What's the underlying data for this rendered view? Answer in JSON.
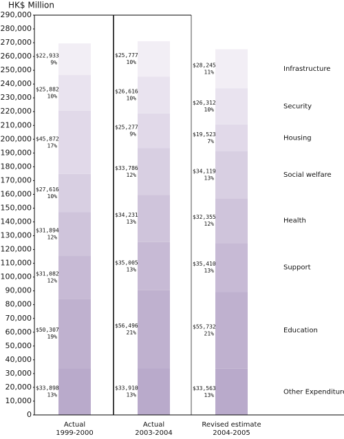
{
  "chart_data": {
    "type": "stacked_bar",
    "y_label": "HK$ Million",
    "categories": [
      "Actual\n1999-2000",
      "Actual\n2003-2004",
      "Revised estimate\n2004-2005"
    ],
    "ylim": [
      0,
      290000
    ],
    "yticks": [
      0,
      {
        "value": 10000,
        "label": "10,000"
      },
      {
        "value": 20000,
        "label": "20,000"
      },
      {
        "value": 30000,
        "label": "30,000"
      },
      {
        "value": 40000,
        "label": "40,000"
      },
      {
        "value": 50000,
        "label": "50,000"
      },
      {
        "value": 60000,
        "label": "60,000"
      },
      {
        "value": 70000,
        "label": "70,000"
      },
      {
        "value": 80000,
        "label": "80,000"
      },
      {
        "value": 90000,
        "label": "90,000"
      },
      {
        "value": 100000,
        "label": "100,000"
      },
      {
        "value": 110000,
        "label": "110,000"
      },
      {
        "value": 120000,
        "label": "120,000"
      },
      {
        "value": 130000,
        "label": "130,000"
      },
      {
        "value": 140000,
        "label": "140,000"
      },
      {
        "value": 150000,
        "label": "150,000"
      },
      {
        "value": 160000,
        "label": "160,000"
      },
      {
        "value": 170000,
        "label": "170,000"
      },
      {
        "value": 180000,
        "label": "180,000"
      },
      {
        "value": 190000,
        "label": "190,000"
      },
      {
        "value": 200000,
        "label": "200,000"
      },
      {
        "value": 210000,
        "label": "210,000"
      },
      {
        "value": 220000,
        "label": "220,000"
      },
      {
        "value": 230000,
        "label": "230,000"
      },
      {
        "value": 240000,
        "label": "240,000"
      },
      {
        "value": 250000,
        "label": "250,000"
      },
      {
        "value": 260000,
        "label": "260,000"
      },
      {
        "value": 270000,
        "label": "270,000"
      },
      {
        "value": 280000,
        "label": "280,000"
      },
      {
        "value": 290000,
        "label": "290,000"
      }
    ],
    "series": [
      {
        "name": "Other Expenditure",
        "color": "#b9aacb",
        "values": [
          33898,
          33910,
          33563
        ],
        "value_labels": [
          "$33,898",
          "$33,910",
          "$33,563"
        ],
        "share_labels": [
          "13%",
          "13%",
          "13%"
        ]
      },
      {
        "name": "Education",
        "color": "#bfb1cf",
        "values": [
          50307,
          56496,
          55732
        ],
        "value_labels": [
          "$50,307",
          "$56,496",
          "$55,732"
        ],
        "share_labels": [
          "19%",
          "21%",
          "21%"
        ]
      },
      {
        "name": "Support",
        "color": "#c7bad5",
        "values": [
          31082,
          35005,
          35410
        ],
        "value_labels": [
          "$31,082",
          "$35,005",
          "$35,410"
        ],
        "share_labels": [
          "12%",
          "13%",
          "13%"
        ]
      },
      {
        "name": "Health",
        "color": "#cfc4db",
        "values": [
          31894,
          34231,
          32355
        ],
        "value_labels": [
          "$31,894",
          "$34,231",
          "$32,355"
        ],
        "share_labels": [
          "12%",
          "13%",
          "12%"
        ]
      },
      {
        "name": "Social welfare",
        "color": "#d8cfe2",
        "values": [
          27616,
          33786,
          34119
        ],
        "value_labels": [
          "$27,616",
          "$33,786",
          "$34,119"
        ],
        "share_labels": [
          "10%",
          "12%",
          "13%"
        ]
      },
      {
        "name": "Housing",
        "color": "#e1d9e9",
        "values": [
          45872,
          25277,
          19523
        ],
        "value_labels": [
          "$45,872",
          "$25,277",
          "$19,523"
        ],
        "share_labels": [
          "17%",
          "9%",
          "7%"
        ]
      },
      {
        "name": "Security",
        "color": "#e9e3ef",
        "values": [
          25882,
          26616,
          26312
        ],
        "value_labels": [
          "$25,882",
          "$26,616",
          "$26,312"
        ],
        "share_labels": [
          "10%",
          "10%",
          "10%"
        ]
      },
      {
        "name": "Infrastructure",
        "color": "#f2eef5",
        "values": [
          22933,
          25777,
          28245
        ],
        "value_labels": [
          "$22,933",
          "$25,777",
          "$28,245"
        ],
        "share_labels": [
          "9%",
          "10%",
          "11%"
        ]
      }
    ]
  }
}
